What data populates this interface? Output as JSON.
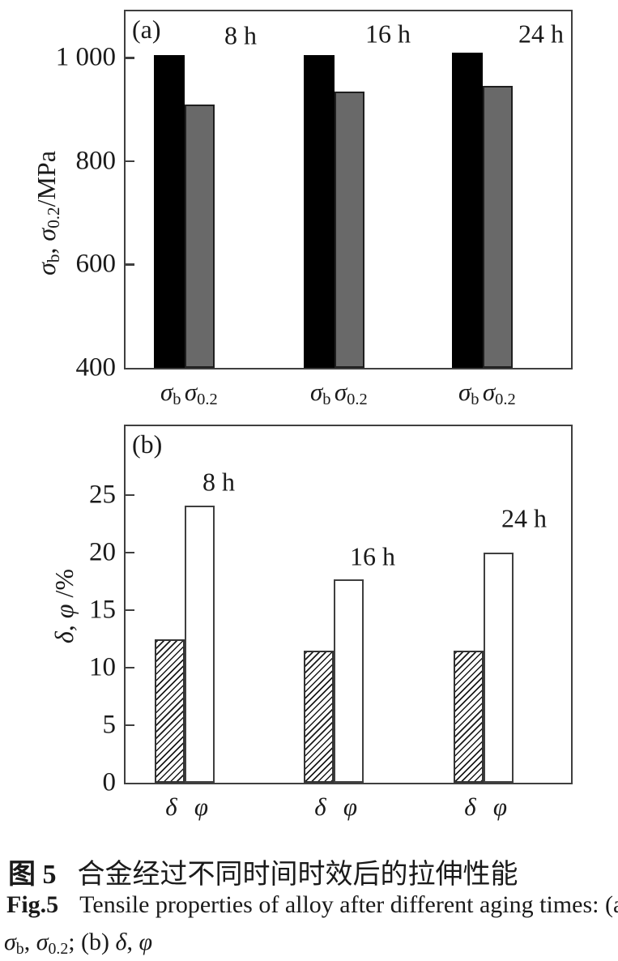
{
  "chart_data": [
    {
      "type": "bar",
      "panel_label": "(a)",
      "ylabel_text": "σb, σ0.2/MPa",
      "ylabel_parts": [
        {
          "t": "σ",
          "i": true
        },
        {
          "t": "b",
          "sub": true
        },
        {
          "t": ", "
        },
        {
          "t": "σ",
          "i": true
        },
        {
          "t": "0.2",
          "sub": true
        },
        {
          "t": "/MPa"
        }
      ],
      "ylim": [
        400,
        1090
      ],
      "grid": false,
      "legend": "none",
      "yticks": [
        {
          "v": 400,
          "label": "400"
        },
        {
          "v": 600,
          "label": "600"
        },
        {
          "v": 800,
          "label": "800"
        },
        {
          "v": 1000,
          "label": "1 000"
        }
      ],
      "categories": [
        "8 h",
        "16 h",
        "24 h"
      ],
      "series": [
        {
          "name": "σb",
          "key": "sigma-b",
          "style": "black",
          "label_parts": [
            {
              "t": "σ",
              "i": true
            },
            {
              "t": "b",
              "sub": true
            }
          ],
          "values": [
            1005,
            1005,
            1010
          ]
        },
        {
          "name": "σ0.2",
          "key": "sigma-0-2",
          "style": "gray",
          "label_parts": [
            {
              "t": "σ",
              "i": true
            },
            {
              "t": "0.2",
              "sub": true
            }
          ],
          "values": [
            910,
            935,
            945
          ]
        }
      ]
    },
    {
      "type": "bar",
      "panel_label": "(b)",
      "ylabel_text": "δ, φ /%",
      "ylabel_parts": [
        {
          "t": "δ",
          "i": true
        },
        {
          "t": ", "
        },
        {
          "t": "φ",
          "i": true
        },
        {
          "t": " /%"
        }
      ],
      "ylim": [
        0,
        31
      ],
      "grid": false,
      "legend": "none",
      "yticks": [
        {
          "v": 0,
          "label": "0"
        },
        {
          "v": 5,
          "label": "5"
        },
        {
          "v": 10,
          "label": "10"
        },
        {
          "v": 15,
          "label": "15"
        },
        {
          "v": 20,
          "label": "20"
        },
        {
          "v": 25,
          "label": "25"
        }
      ],
      "categories": [
        "8 h",
        "16 h",
        "24 h"
      ],
      "series": [
        {
          "name": "δ",
          "key": "delta",
          "style": "hatched",
          "label_parts": [
            {
              "t": "δ",
              "i": true
            }
          ],
          "values": [
            12.5,
            11.5,
            11.5
          ]
        },
        {
          "name": "φ",
          "key": "phi",
          "style": "white",
          "label_parts": [
            {
              "t": "φ",
              "i": true
            }
          ],
          "values": [
            24.1,
            17.7,
            20.0
          ]
        }
      ]
    }
  ],
  "caption": {
    "zh_tag": "图 5",
    "zh_text": "合金经过不同时间时效后的拉伸性能",
    "en_tag": "Fig.5",
    "en_text": "Tensile properties of alloy after different aging times: (a)",
    "symbols_line_parts": [
      {
        "t": "σ",
        "i": true
      },
      {
        "t": "b",
        "sub": true
      },
      {
        "t": ", "
      },
      {
        "t": "σ",
        "i": true
      },
      {
        "t": "0.2",
        "sub": true
      },
      {
        "t": "; (b) "
      },
      {
        "t": "δ",
        "i": true
      },
      {
        "t": ", "
      },
      {
        "t": "φ",
        "i": true
      }
    ]
  },
  "colors": {
    "bar_black": "#000000",
    "bar_gray": "#696969",
    "bar_white": "#ffffff",
    "hatch_line": "#1a1a1a",
    "axis": "#3f3f3f",
    "text": "#1a1a1a",
    "background": "#ffffff"
  }
}
